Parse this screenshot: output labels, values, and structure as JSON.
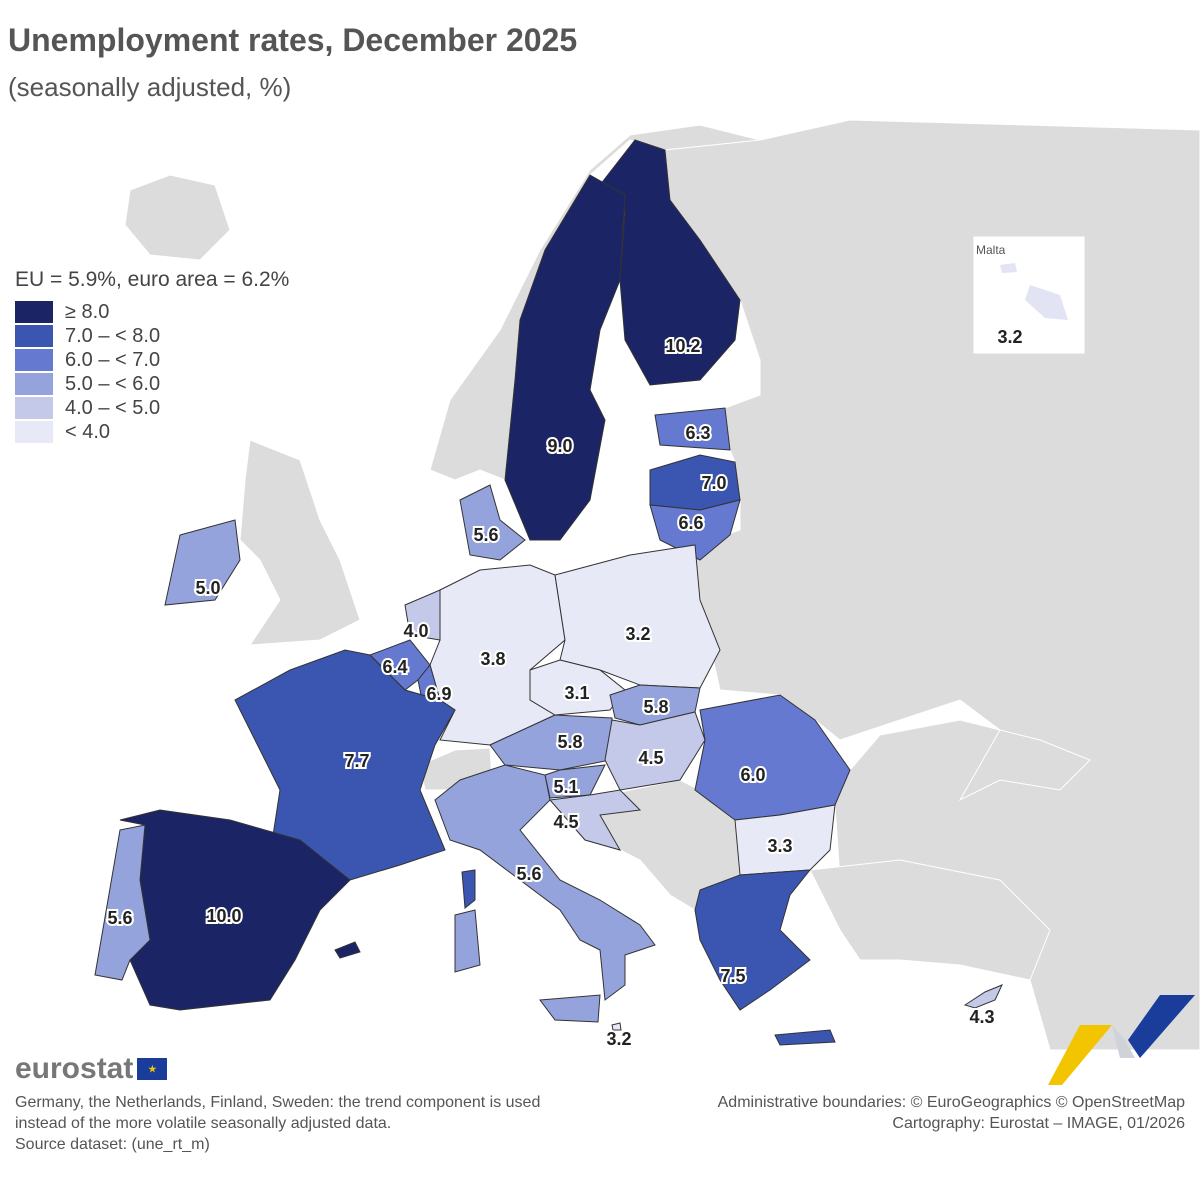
{
  "header": {
    "title": "Unemployment rates, December 2025",
    "subtitle": "(seasonally adjusted, %)"
  },
  "legend": {
    "title": "EU = 5.9%, euro area = 6.2%",
    "classes": [
      {
        "label": "≥ 8.0",
        "color": "#1b2566"
      },
      {
        "label": "7.0 – < 8.0",
        "color": "#3b56b0"
      },
      {
        "label": "6.0 – < 7.0",
        "color": "#6479cf"
      },
      {
        "label": "5.0 – < 6.0",
        "color": "#95a3dd"
      },
      {
        "label": "4.0 – < 5.0",
        "color": "#c4c9ea"
      },
      {
        "label": "< 4.0",
        "color": "#e7e9f6"
      }
    ]
  },
  "countries": {
    "finland": "10.2",
    "sweden": "9.0",
    "estonia": "6.3",
    "latvia": "7.0",
    "lithuania": "6.6",
    "denmark": "5.6",
    "ireland": "5.0",
    "netherlands": "4.0",
    "belgium": "6.4",
    "luxembourg": "6.9",
    "germany": "3.8",
    "poland": "3.2",
    "czechia": "3.1",
    "slovakia": "5.8",
    "austria": "5.8",
    "hungary": "4.5",
    "slovenia": "5.1",
    "croatia": "4.5",
    "romania": "6.0",
    "bulgaria": "3.3",
    "france": "7.7",
    "spain": "10.0",
    "portugal": "5.6",
    "italy": "5.6",
    "greece": "7.5",
    "malta": "3.2",
    "cyprus": "4.3"
  },
  "inset": {
    "title": "Malta",
    "value": "3.2"
  },
  "logo": "eurostat",
  "footer": {
    "notes": [
      "Germany, the Netherlands, Finland, Sweden: the trend component is used",
      "instead of the more volatile seasonally adjusted data.",
      "Source dataset: (une_rt_m)"
    ],
    "credits": [
      "Administrative boundaries: © EuroGeographics © OpenStreetMap",
      "Cartography: Eurostat – IMAGE, 01/2026"
    ]
  }
}
